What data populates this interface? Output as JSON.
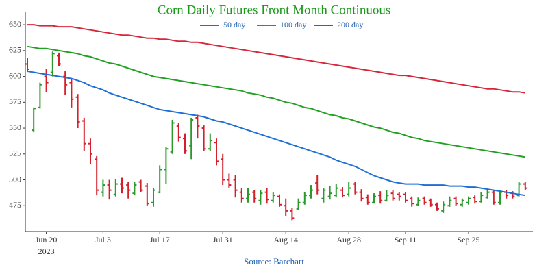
{
  "chart_data": {
    "type": "ohlc",
    "title": "Corn Daily Futures Front Month Continuous",
    "categories": [
      null,
      null,
      null,
      "Jun 20",
      null,
      null,
      null,
      null,
      null,
      null,
      null,
      null,
      "Jul 3",
      null,
      null,
      null,
      null,
      null,
      null,
      null,
      null,
      "Jul 17",
      null,
      null,
      null,
      null,
      null,
      null,
      null,
      null,
      null,
      "Jul 31",
      null,
      null,
      null,
      null,
      null,
      null,
      null,
      null,
      null,
      "Aug 14",
      null,
      null,
      null,
      null,
      null,
      null,
      null,
      null,
      null,
      "Aug 28",
      null,
      null,
      null,
      null,
      null,
      null,
      null,
      null,
      "Sep 11",
      null,
      null,
      null,
      null,
      null,
      null,
      null,
      null,
      null,
      "Sep 25",
      null,
      null,
      null,
      null,
      null,
      null,
      null,
      null,
      null
    ],
    "year_label": "2023",
    "open": [
      612,
      548,
      570,
      600,
      604,
      620,
      600,
      594,
      580,
      557,
      535,
      520,
      488,
      495,
      486,
      496,
      495,
      487,
      498,
      494,
      478,
      488,
      510,
      527,
      552,
      540,
      533,
      560,
      550,
      530,
      536,
      520,
      500,
      500,
      488,
      482,
      488,
      480,
      488,
      480,
      484,
      475,
      470,
      472,
      478,
      485,
      497,
      482,
      484,
      485,
      490,
      486,
      496,
      488,
      483,
      478,
      485,
      480,
      487,
      486,
      486,
      482,
      476,
      482,
      480,
      476,
      470,
      475,
      482,
      476,
      478,
      483,
      479,
      483,
      488,
      478,
      488,
      487,
      485,
      496
    ],
    "high": [
      618,
      570,
      594,
      607,
      624,
      623,
      605,
      598,
      583,
      560,
      540,
      523,
      500,
      500,
      501,
      502,
      498,
      498,
      500,
      497,
      492,
      514,
      532,
      558,
      555,
      545,
      560,
      563,
      553,
      545,
      540,
      525,
      506,
      505,
      492,
      492,
      490,
      490,
      492,
      488,
      486,
      482,
      473,
      482,
      488,
      495,
      505,
      492,
      494,
      496,
      493,
      498,
      498,
      491,
      486,
      487,
      489,
      490,
      490,
      488,
      488,
      484,
      483,
      484,
      482,
      478,
      479,
      484,
      484,
      482,
      484,
      485,
      488,
      491,
      490,
      490,
      490,
      489,
      498,
      498
    ],
    "low": [
      605,
      546,
      569,
      585,
      600,
      610,
      582,
      570,
      550,
      528,
      515,
      485,
      484,
      481,
      484,
      487,
      482,
      485,
      488,
      475,
      474,
      487,
      496,
      525,
      537,
      525,
      520,
      540,
      528,
      528,
      514,
      495,
      492,
      483,
      478,
      478,
      478,
      476,
      477,
      478,
      474,
      465,
      461,
      471,
      476,
      482,
      486,
      478,
      481,
      483,
      483,
      484,
      486,
      479,
      476,
      477,
      477,
      479,
      480,
      480,
      478,
      474,
      475,
      476,
      474,
      470,
      468,
      474,
      475,
      474,
      476,
      477,
      478,
      482,
      476,
      476,
      482,
      482,
      484,
      490
    ],
    "close": [
      607,
      569,
      592,
      594,
      622,
      612,
      592,
      578,
      556,
      535,
      525,
      490,
      495,
      490,
      496,
      492,
      490,
      495,
      490,
      477,
      490,
      510,
      530,
      555,
      541,
      528,
      558,
      552,
      530,
      538,
      518,
      500,
      495,
      490,
      482,
      486,
      482,
      487,
      481,
      485,
      476,
      470,
      463,
      478,
      485,
      490,
      490,
      490,
      487,
      492,
      485,
      492,
      488,
      482,
      478,
      484,
      480,
      485,
      482,
      484,
      480,
      477,
      480,
      478,
      476,
      472,
      476,
      480,
      477,
      480,
      482,
      479,
      485,
      488,
      478,
      488,
      485,
      484,
      496,
      492
    ],
    "up_color": "#2a9a2a",
    "down_color": "#d4202c",
    "series": [
      {
        "name": "50 day",
        "color": "#1f6fd6",
        "values": [
          605,
          604,
          603,
          602,
          601,
          600,
          599,
          598,
          596,
          594,
          591,
          589,
          587,
          584,
          582,
          580,
          578,
          576,
          574,
          572,
          570,
          568,
          567,
          566,
          565,
          564,
          563,
          562,
          561,
          559,
          557,
          556,
          554,
          552,
          550,
          548,
          546,
          544,
          542,
          540,
          538,
          536,
          534,
          532,
          530,
          528,
          526,
          524,
          522,
          519,
          517,
          515,
          513,
          510,
          507,
          504,
          502,
          500,
          498,
          497,
          496,
          496,
          496,
          495,
          495,
          495,
          495,
          494,
          494,
          494,
          493,
          493,
          492,
          491,
          490,
          489,
          488,
          487,
          486,
          485
        ]
      },
      {
        "name": "100 day",
        "color": "#22a022",
        "values": [
          629,
          628,
          627,
          627,
          626,
          625,
          624,
          623,
          622,
          620,
          619,
          617,
          615,
          613,
          612,
          610,
          608,
          606,
          604,
          602,
          600,
          599,
          598,
          597,
          596,
          595,
          594,
          593,
          592,
          591,
          590,
          589,
          588,
          587,
          586,
          584,
          583,
          582,
          580,
          579,
          577,
          575,
          574,
          572,
          570,
          569,
          567,
          565,
          563,
          562,
          560,
          559,
          557,
          555,
          553,
          551,
          550,
          548,
          546,
          545,
          543,
          541,
          540,
          538,
          537,
          536,
          535,
          534,
          533,
          532,
          531,
          530,
          529,
          528,
          527,
          526,
          525,
          524,
          523,
          522
        ]
      },
      {
        "name": "200 day",
        "color": "#d6283c",
        "values": [
          650,
          650,
          649,
          649,
          649,
          648,
          648,
          648,
          647,
          646,
          645,
          644,
          643,
          642,
          641,
          640,
          640,
          639,
          638,
          637,
          637,
          636,
          636,
          635,
          634,
          634,
          633,
          633,
          632,
          631,
          630,
          629,
          628,
          627,
          626,
          625,
          624,
          623,
          622,
          621,
          620,
          619,
          618,
          617,
          616,
          615,
          614,
          613,
          612,
          611,
          610,
          609,
          608,
          607,
          606,
          605,
          604,
          603,
          602,
          601,
          601,
          600,
          599,
          598,
          597,
          596,
          595,
          594,
          593,
          592,
          591,
          590,
          589,
          588,
          588,
          587,
          586,
          585,
          585,
          584
        ]
      }
    ],
    "ylim": [
      450,
      662
    ],
    "yticks": [
      475,
      500,
      525,
      550,
      575,
      600,
      625,
      650
    ],
    "source": "Source: Barchart"
  }
}
